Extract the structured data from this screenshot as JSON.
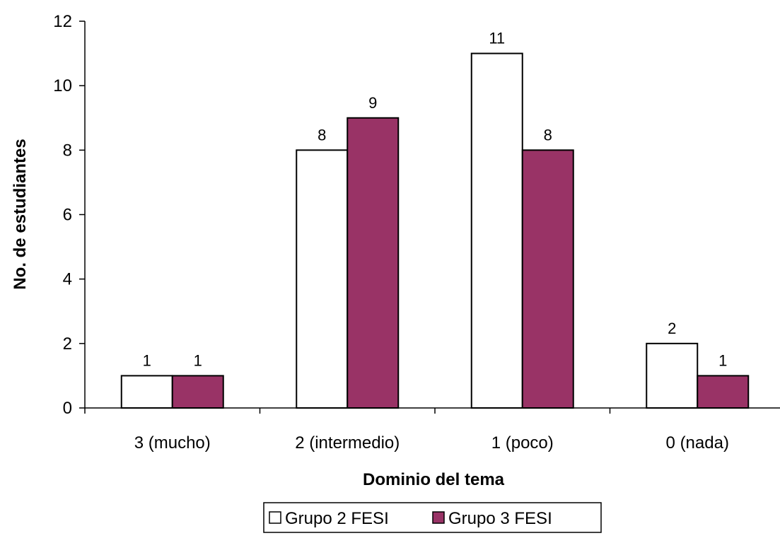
{
  "chart_data": {
    "type": "bar",
    "title": "",
    "categories": [
      "3 (mucho)",
      "2 (intermedio)",
      "1 (poco)",
      "0 (nada)"
    ],
    "series": [
      {
        "name": "Grupo 2 FESI",
        "values": [
          1,
          8,
          11,
          2
        ],
        "color": "#ffffff"
      },
      {
        "name": "Grupo 3 FESI",
        "values": [
          1,
          9,
          8,
          1
        ],
        "color": "#993366"
      }
    ],
    "xlabel": "Dominio del tema",
    "ylabel": "No. de estudiantes",
    "ylim": [
      0,
      12
    ],
    "yticks": [
      0,
      2,
      4,
      6,
      8,
      10,
      12
    ],
    "grid": false,
    "data_labels": true,
    "legend_position": "bottom"
  }
}
